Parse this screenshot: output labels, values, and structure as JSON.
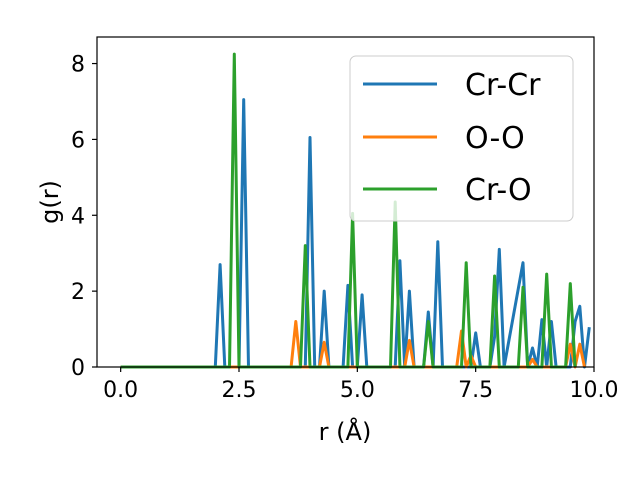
{
  "chart_data": {
    "type": "line",
    "xlabel": "r (Å)",
    "ylabel": "g(r)",
    "xlim": [
      -0.5,
      10.0
    ],
    "ylim": [
      0,
      8.7
    ],
    "xticks": [
      0.0,
      2.5,
      5.0,
      7.5,
      10.0
    ],
    "xtick_labels": [
      "0.0",
      "2.5",
      "5.0",
      "7.5",
      "10.0"
    ],
    "yticks": [
      0,
      2,
      4,
      6,
      8
    ],
    "ytick_labels": [
      "0",
      "2",
      "4",
      "6",
      "8"
    ],
    "grid": false,
    "legend_position": "top-right",
    "series": [
      {
        "name": "Cr-Cr",
        "color": "#1f77b4",
        "points": [
          [
            0.0,
            0.0
          ],
          [
            2.0,
            0.0
          ],
          [
            2.1,
            2.7
          ],
          [
            2.2,
            0.0
          ],
          [
            2.5,
            0.0
          ],
          [
            2.6,
            7.05
          ],
          [
            2.7,
            0.0
          ],
          [
            3.9,
            0.0
          ],
          [
            4.0,
            6.05
          ],
          [
            4.1,
            0.0
          ],
          [
            4.2,
            0.0
          ],
          [
            4.3,
            2.0
          ],
          [
            4.4,
            0.0
          ],
          [
            4.7,
            0.0
          ],
          [
            4.8,
            2.15
          ],
          [
            4.9,
            0.0
          ],
          [
            5.0,
            0.0
          ],
          [
            5.1,
            1.9
          ],
          [
            5.2,
            0.0
          ],
          [
            5.8,
            0.0
          ],
          [
            5.9,
            2.8
          ],
          [
            6.0,
            0.0
          ],
          [
            6.1,
            2.0
          ],
          [
            6.2,
            0.0
          ],
          [
            6.4,
            0.0
          ],
          [
            6.5,
            1.45
          ],
          [
            6.6,
            0.0
          ],
          [
            6.7,
            3.3
          ],
          [
            6.8,
            0.0
          ],
          [
            7.4,
            0.0
          ],
          [
            7.5,
            0.9
          ],
          [
            7.6,
            0.0
          ],
          [
            7.8,
            0.0
          ],
          [
            7.9,
            0.8
          ],
          [
            8.0,
            3.1
          ],
          [
            8.1,
            0.0
          ],
          [
            8.5,
            2.75
          ],
          [
            8.6,
            0.0
          ],
          [
            8.7,
            0.5
          ],
          [
            8.8,
            0.0
          ],
          [
            8.9,
            1.25
          ],
          [
            9.0,
            0.0
          ],
          [
            9.1,
            1.2
          ],
          [
            9.2,
            0.0
          ],
          [
            9.5,
            0.0
          ],
          [
            9.6,
            1.2
          ],
          [
            9.7,
            1.6
          ],
          [
            9.8,
            0.0
          ],
          [
            9.9,
            1.05
          ]
        ]
      },
      {
        "name": "O-O",
        "color": "#ff7f0e",
        "points": [
          [
            0.0,
            0.0
          ],
          [
            3.6,
            0.0
          ],
          [
            3.7,
            1.2
          ],
          [
            3.8,
            0.0
          ],
          [
            4.2,
            0.0
          ],
          [
            4.3,
            0.65
          ],
          [
            4.4,
            0.0
          ],
          [
            6.0,
            0.0
          ],
          [
            6.1,
            0.7
          ],
          [
            6.2,
            0.0
          ],
          [
            7.1,
            0.0
          ],
          [
            7.2,
            0.95
          ],
          [
            7.3,
            0.0
          ],
          [
            7.4,
            0.3
          ],
          [
            7.5,
            0.0
          ],
          [
            8.6,
            0.0
          ],
          [
            8.7,
            0.2
          ],
          [
            8.8,
            0.0
          ],
          [
            9.4,
            0.0
          ],
          [
            9.5,
            0.6
          ],
          [
            9.6,
            0.0
          ],
          [
            9.7,
            0.6
          ],
          [
            9.8,
            0.0
          ]
        ]
      },
      {
        "name": "Cr-O",
        "color": "#2ca02c",
        "points": [
          [
            0.0,
            0.0
          ],
          [
            2.3,
            0.0
          ],
          [
            2.4,
            8.25
          ],
          [
            2.5,
            0.0
          ],
          [
            3.8,
            0.0
          ],
          [
            3.9,
            3.2
          ],
          [
            4.0,
            0.0
          ],
          [
            4.8,
            0.0
          ],
          [
            4.9,
            4.05
          ],
          [
            5.0,
            0.0
          ],
          [
            5.7,
            0.0
          ],
          [
            5.8,
            4.35
          ],
          [
            5.9,
            0.0
          ],
          [
            6.4,
            0.0
          ],
          [
            6.5,
            1.2
          ],
          [
            6.6,
            0.0
          ],
          [
            7.2,
            0.0
          ],
          [
            7.3,
            2.75
          ],
          [
            7.4,
            0.0
          ],
          [
            7.8,
            0.0
          ],
          [
            7.9,
            2.4
          ],
          [
            8.0,
            0.0
          ],
          [
            8.4,
            0.0
          ],
          [
            8.5,
            2.1
          ],
          [
            8.6,
            0.0
          ],
          [
            8.9,
            0.0
          ],
          [
            9.0,
            2.45
          ],
          [
            9.1,
            0.0
          ],
          [
            9.4,
            0.0
          ],
          [
            9.5,
            2.2
          ],
          [
            9.6,
            0.0
          ]
        ]
      }
    ]
  }
}
